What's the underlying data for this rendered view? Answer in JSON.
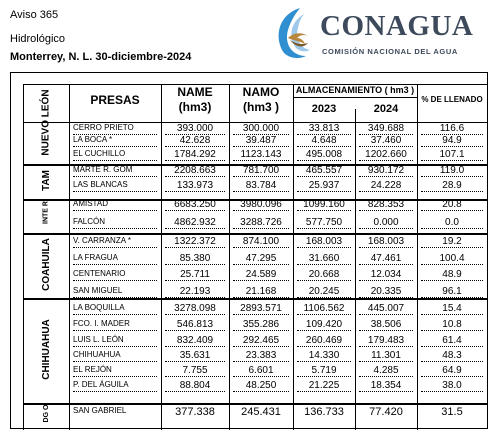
{
  "header": {
    "aviso": "Aviso 365",
    "hidro": "Hidrológico",
    "place_date": "Monterrey, N. L. 30-diciembre-2024"
  },
  "logo": {
    "title": "CONAGUA",
    "subtitle": "COMISIÓN NACIONAL DEL AGUA"
  },
  "columns": {
    "presas": "PRESAS",
    "name": "NAME",
    "name_unit": "(hm3)",
    "namo": "NAMO",
    "namo_unit": "(hm3 )",
    "alm": "ALMACENAMIENTO ( hm3 )",
    "y2023": "2023",
    "y2024": "2024",
    "llenado": "% DE LLENADO"
  },
  "states": [
    "NUEVO LEÓN",
    "TAM",
    "INTE R",
    "COAHUILA",
    "CHIHUAHUA",
    "DG O"
  ],
  "rows": [
    {
      "presa": "CERRO PRIETO",
      "name": "393.000",
      "namo": "300.000",
      "a2023": "33.813",
      "a2024": "349.688",
      "pct": "116.6"
    },
    {
      "presa": "LA BOCA *",
      "name": "42.628",
      "namo": "39.487",
      "a2023": "4.648",
      "a2024": "37.460",
      "pct": "94.9"
    },
    {
      "presa": "EL CUCHILLO",
      "name": "1784.292",
      "namo": "1123.143",
      "a2023": "495.008",
      "a2024": "1202.660",
      "pct": "107.1"
    },
    {
      "presa": "MARTE R. GÓM",
      "name": "2208.663",
      "namo": "781.700",
      "a2023": "465.557",
      "a2024": "930.172",
      "pct": "119.0"
    },
    {
      "presa": "LAS BLANCAS",
      "name": "133.973",
      "namo": "83.784",
      "a2023": "25.937",
      "a2024": "24.228",
      "pct": "28.9"
    },
    {
      "presa": "AMISTAD",
      "name": "6683.250",
      "namo": "3980.096",
      "a2023": "1099.160",
      "a2024": "828.353",
      "pct": "20.8"
    },
    {
      "presa": "FALCÓN",
      "name": "4862.932",
      "namo": "3288.726",
      "a2023": "577.750",
      "a2024": "0.000",
      "pct": "0.0"
    },
    {
      "presa": "V. CARRANZA *",
      "name": "1322.372",
      "namo": "874.100",
      "a2023": "168.003",
      "a2024": "168.003",
      "pct": "19.2"
    },
    {
      "presa": "LA FRAGUA",
      "name": "85.380",
      "namo": "47.295",
      "a2023": "31.660",
      "a2024": "47.461",
      "pct": "100.4"
    },
    {
      "presa": "CENTENARIO",
      "name": "25.711",
      "namo": "24.589",
      "a2023": "20.668",
      "a2024": "12.034",
      "pct": "48.9"
    },
    {
      "presa": "SAN MIGUEL",
      "name": "22.193",
      "namo": "21.168",
      "a2023": "20.245",
      "a2024": "20.335",
      "pct": "96.1"
    },
    {
      "presa": "LA BOQUILLA",
      "name": "3278.098",
      "namo": "2893.571",
      "a2023": "1106.562",
      "a2024": "445.007",
      "pct": "15.4"
    },
    {
      "presa": "FCO. I. MADER",
      "name": "546.813",
      "namo": "355.286",
      "a2023": "109.420",
      "a2024": "38.506",
      "pct": "10.8"
    },
    {
      "presa": "LUIS L. LEÓN",
      "name": "832.409",
      "namo": "292.465",
      "a2023": "260.469",
      "a2024": "179.483",
      "pct": "61.4"
    },
    {
      "presa": "CHIHUAHUA",
      "name": "35.631",
      "namo": "23.383",
      "a2023": "14.330",
      "a2024": "11.301",
      "pct": "48.3"
    },
    {
      "presa": "EL REJÓN",
      "name": "7.755",
      "namo": "6.601",
      "a2023": "5.719",
      "a2024": "4.285",
      "pct": "64.9"
    },
    {
      "presa": "P. DEL ÁGUILA",
      "name": "88.804",
      "namo": "48.250",
      "a2023": "21.225",
      "a2024": "18.354",
      "pct": "38.0"
    },
    {
      "presa": "SAN GABRIEL",
      "name": "377.338",
      "namo": "245.431",
      "a2023": "136.733",
      "a2024": "77.420",
      "pct": "31.5"
    }
  ]
}
